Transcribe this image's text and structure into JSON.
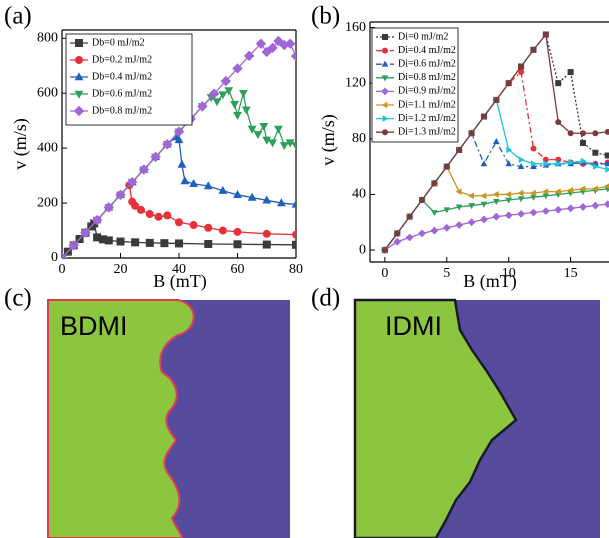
{
  "chart_data": [
    {
      "type": "line",
      "panel_label": "(a)",
      "x_label": "B (mT)",
      "y_label": "v (m/s)",
      "xlim": [
        0,
        80
      ],
      "xticks": [
        0,
        20,
        40,
        60,
        80
      ],
      "ylim": [
        0,
        830
      ],
      "yticks": [
        0,
        200,
        400,
        600,
        800
      ],
      "series": [
        {
          "name": "Db=0 mJ/m2",
          "color": "#3a3a3a",
          "marker": "square",
          "line_style": "solid",
          "x": [
            0,
            2,
            4,
            6,
            8,
            10,
            11,
            12,
            14,
            16,
            20,
            25,
            30,
            35,
            40,
            50,
            60,
            70,
            80
          ],
          "values": [
            0,
            23,
            46,
            69,
            92,
            115,
            126,
            75,
            68,
            64,
            60,
            57,
            55,
            54,
            53,
            51,
            50,
            49,
            48
          ]
        },
        {
          "name": "Db=0.2 mJ/m2",
          "color": "#e8303a",
          "marker": "circle",
          "line_style": "solid",
          "x": [
            0,
            4,
            8,
            12,
            16,
            20,
            23,
            24,
            25,
            27,
            30,
            33,
            36,
            40,
            45,
            50,
            55,
            60,
            70,
            80
          ],
          "values": [
            0,
            46,
            92,
            138,
            184,
            230,
            265,
            205,
            190,
            175,
            160,
            150,
            155,
            130,
            120,
            110,
            100,
            95,
            88,
            85
          ]
        },
        {
          "name": "Db=0.4 mJ/m2",
          "color": "#1f5fbf",
          "marker": "triangle-up",
          "line_style": "solid",
          "x": [
            0,
            4,
            8,
            12,
            16,
            20,
            24,
            28,
            32,
            36,
            39,
            40,
            41,
            42,
            45,
            50,
            55,
            60,
            65,
            70,
            75,
            80
          ],
          "values": [
            0,
            46,
            92,
            138,
            184,
            230,
            276,
            322,
            368,
            414,
            440,
            430,
            340,
            280,
            270,
            262,
            245,
            230,
            220,
            210,
            200,
            195
          ]
        },
        {
          "name": "Db=0.6 mJ/m2",
          "color": "#2ca05a",
          "marker": "triangle-down",
          "line_style": "solid",
          "x": [
            0,
            4,
            8,
            12,
            16,
            20,
            24,
            28,
            32,
            36,
            40,
            44,
            48,
            51,
            53,
            55,
            57,
            59,
            60,
            62,
            63,
            65,
            67,
            69,
            70,
            72,
            74,
            76,
            78,
            80
          ],
          "values": [
            0,
            46,
            92,
            138,
            184,
            230,
            276,
            322,
            368,
            414,
            460,
            506,
            552,
            585,
            570,
            595,
            610,
            560,
            520,
            600,
            540,
            470,
            450,
            480,
            430,
            420,
            470,
            410,
            420,
            410
          ]
        },
        {
          "name": "Db=0.8 mJ/m2",
          "color": "#a066d8",
          "marker": "diamond",
          "line_style": "solid",
          "x": [
            0,
            4,
            8,
            12,
            16,
            20,
            24,
            28,
            32,
            36,
            40,
            44,
            48,
            52,
            56,
            60,
            64,
            68,
            70,
            72,
            74,
            76,
            78,
            80
          ],
          "values": [
            0,
            46,
            92,
            138,
            184,
            230,
            276,
            322,
            368,
            414,
            460,
            506,
            552,
            598,
            644,
            690,
            736,
            780,
            750,
            765,
            790,
            775,
            780,
            735
          ]
        }
      ]
    },
    {
      "type": "line",
      "panel_label": "(b)",
      "x_label": "B (mT)",
      "y_label": "v (m/s)",
      "xlim": [
        -1.2,
        18.1
      ],
      "xticks": [
        0,
        5,
        10,
        15
      ],
      "ylim": [
        -8.6,
        164
      ],
      "yticks": [
        0,
        40,
        80,
        120,
        160
      ],
      "series": [
        {
          "name": "Di=0 mJ/m2",
          "color": "#3a3a3a",
          "marker": "square",
          "line_style": "dotted",
          "x": [
            0,
            1,
            2,
            3,
            4,
            5,
            6,
            7,
            8,
            9,
            10,
            11,
            12,
            13,
            14,
            15,
            16,
            17,
            18
          ],
          "values": [
            0,
            12,
            24,
            36,
            48,
            60,
            72,
            84,
            96,
            108,
            120,
            132,
            144,
            155,
            120,
            128,
            77,
            70,
            68
          ]
        },
        {
          "name": "Di=0.4 mJ/m2",
          "color": "#e8303a",
          "marker": "circle",
          "line_style": "dash-dot",
          "x": [
            0,
            1,
            2,
            3,
            4,
            5,
            6,
            7,
            8,
            9,
            10,
            11,
            12,
            13,
            14,
            15,
            16,
            17,
            18
          ],
          "values": [
            0,
            12,
            24,
            36,
            48,
            60,
            72,
            84,
            96,
            108,
            120,
            128,
            73,
            65,
            65,
            63,
            62,
            62,
            63
          ]
        },
        {
          "name": "Di=0.6 mJ/m2",
          "color": "#1f5fbf",
          "marker": "triangle-up",
          "line_style": "dash-dot",
          "x": [
            0,
            1,
            2,
            3,
            4,
            5,
            6,
            7,
            8,
            9,
            10,
            11,
            12,
            13,
            14,
            15,
            16,
            17,
            18
          ],
          "values": [
            0,
            12,
            24,
            36,
            48,
            60,
            72,
            84,
            62,
            78,
            62,
            60,
            60,
            61,
            62,
            62,
            63,
            62,
            62
          ]
        },
        {
          "name": "Di=0.8 mJ/m2",
          "color": "#2ca05a",
          "marker": "triangle-down",
          "line_style": "solid",
          "x": [
            0,
            1,
            2,
            3,
            4,
            5,
            6,
            7,
            8,
            9,
            10,
            11,
            12,
            13,
            14,
            15,
            16,
            17,
            18
          ],
          "values": [
            0,
            12,
            24,
            36,
            27,
            29,
            31,
            32,
            33,
            35,
            36,
            37,
            38,
            39,
            40,
            41,
            42,
            43,
            44
          ]
        },
        {
          "name": "Di=0.9 mJ/m2",
          "color": "#a066d8",
          "marker": "diamond",
          "line_style": "solid",
          "x": [
            0,
            1,
            2,
            3,
            4,
            5,
            6,
            7,
            8,
            9,
            10,
            11,
            12,
            13,
            14,
            15,
            16,
            17,
            18
          ],
          "values": [
            0,
            6,
            9,
            12,
            14,
            16,
            18,
            20,
            22,
            24,
            25,
            26,
            27,
            28,
            29,
            30,
            31,
            32,
            33
          ]
        },
        {
          "name": "Di=1.1 mJ/m2",
          "color": "#c8961e",
          "marker": "triangle-left",
          "line_style": "solid",
          "x": [
            0,
            1,
            2,
            3,
            4,
            5,
            6,
            7,
            8,
            9,
            10,
            11,
            12,
            13,
            14,
            15,
            16,
            17,
            18
          ],
          "values": [
            0,
            12,
            24,
            36,
            48,
            60,
            42,
            39,
            39,
            40,
            40,
            41,
            41,
            42,
            42,
            43,
            44,
            44,
            46
          ]
        },
        {
          "name": "Di=1.2 mJ/m2",
          "color": "#1cc6d8",
          "marker": "triangle-right",
          "line_style": "solid",
          "x": [
            0,
            1,
            2,
            3,
            4,
            5,
            6,
            7,
            8,
            9,
            10,
            11,
            12,
            13,
            14,
            15,
            16,
            17,
            18
          ],
          "values": [
            0,
            12,
            24,
            36,
            48,
            60,
            72,
            84,
            96,
            108,
            72,
            65,
            62,
            62,
            62,
            63,
            64,
            60,
            58
          ]
        },
        {
          "name": "Di=1.3 mJ/m2",
          "color": "#7b3b3b",
          "marker": "circle",
          "line_style": "solid",
          "x": [
            0,
            1,
            2,
            3,
            4,
            5,
            6,
            7,
            8,
            9,
            10,
            11,
            12,
            13,
            14,
            15,
            16,
            17,
            18
          ],
          "values": [
            0,
            12,
            24,
            36,
            48,
            60,
            72,
            84,
            96,
            108,
            120,
            132,
            144,
            155,
            92,
            84,
            84,
            84,
            85
          ]
        }
      ]
    }
  ],
  "images": [
    {
      "panel_label": "(c)",
      "label": "BDMI"
    },
    {
      "panel_label": "(d)",
      "label": "IDMI"
    }
  ]
}
